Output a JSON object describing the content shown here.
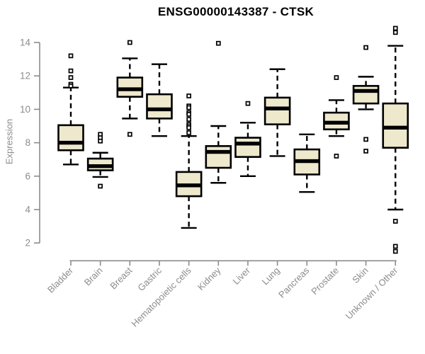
{
  "title": "ENSG00000143387 - CTSK",
  "colors": {
    "background": "#ffffff",
    "box_fill": "#eee8cd",
    "box_stroke": "#000000",
    "median": "#000000",
    "whisker": "#000000",
    "outlier_stroke": "#000000",
    "outlier_fill": "#ffffff",
    "axis": "#8c8c8c",
    "tick_label": "#8c8c8c",
    "title_color": "#000000"
  },
  "chart_data": {
    "type": "boxplot",
    "title": "ENSG00000143387 - CTSK",
    "xlabel": "",
    "ylabel": "Expression",
    "ylim": [
      1.4,
      15.0
    ],
    "yticks": [
      2,
      4,
      6,
      8,
      10,
      12,
      14
    ],
    "grid": false,
    "legend": false,
    "whisker_style": "dashed",
    "outlier_marker": "open-square",
    "categories": [
      "Bladder",
      "Brain",
      "Breast",
      "Gastric",
      "Hematopoietic cells",
      "Kidney",
      "Liver",
      "Lung",
      "Pancreas",
      "Prostate",
      "Skin",
      "Unknown / Other"
    ],
    "series": [
      {
        "name": "Bladder",
        "median": 8.0,
        "q1": 7.55,
        "q3": 9.05,
        "whisker_low": 6.7,
        "whisker_high": 11.3,
        "outliers": [
          13.2,
          12.3,
          11.9,
          11.5,
          11.4
        ]
      },
      {
        "name": "Brain",
        "median": 6.6,
        "q1": 6.35,
        "q3": 7.05,
        "whisker_low": 5.95,
        "whisker_high": 7.4,
        "outliers": [
          8.5,
          8.3,
          8.1,
          5.4
        ]
      },
      {
        "name": "Breast",
        "median": 11.2,
        "q1": 10.75,
        "q3": 11.9,
        "whisker_low": 9.45,
        "whisker_high": 13.05,
        "outliers": [
          14.0,
          8.5
        ]
      },
      {
        "name": "Gastric",
        "median": 10.0,
        "q1": 9.45,
        "q3": 10.9,
        "whisker_low": 8.4,
        "whisker_high": 12.7,
        "outliers": []
      },
      {
        "name": "Hematopoietic cells",
        "median": 5.45,
        "q1": 4.8,
        "q3": 6.25,
        "whisker_low": 2.9,
        "whisker_high": 8.4,
        "outliers": [
          10.8,
          10.2,
          10.1,
          9.8,
          9.7,
          9.4,
          9.1,
          9.0,
          8.9,
          8.6
        ]
      },
      {
        "name": "Kidney",
        "median": 7.45,
        "q1": 6.5,
        "q3": 7.8,
        "whisker_low": 5.6,
        "whisker_high": 9.0,
        "outliers": [
          13.95
        ]
      },
      {
        "name": "Liver",
        "median": 7.95,
        "q1": 7.15,
        "q3": 8.3,
        "whisker_low": 6.0,
        "whisker_high": 9.2,
        "outliers": [
          10.35
        ]
      },
      {
        "name": "Lung",
        "median": 10.05,
        "q1": 9.1,
        "q3": 10.7,
        "whisker_low": 7.2,
        "whisker_high": 12.4,
        "outliers": []
      },
      {
        "name": "Pancreas",
        "median": 6.9,
        "q1": 6.1,
        "q3": 7.6,
        "whisker_low": 5.05,
        "whisker_high": 8.5,
        "outliers": []
      },
      {
        "name": "Prostate",
        "median": 9.2,
        "q1": 8.8,
        "q3": 9.8,
        "whisker_low": 8.4,
        "whisker_high": 10.55,
        "outliers": [
          11.9,
          7.2
        ]
      },
      {
        "name": "Skin",
        "median": 11.1,
        "q1": 10.35,
        "q3": 11.4,
        "whisker_low": 10.0,
        "whisker_high": 11.95,
        "outliers": [
          13.7,
          8.2,
          7.5
        ]
      },
      {
        "name": "Unknown / Other",
        "median": 8.9,
        "q1": 7.7,
        "q3": 10.35,
        "whisker_low": 4.0,
        "whisker_high": 13.8,
        "outliers": [
          14.85,
          14.6,
          3.3,
          1.8,
          1.5
        ]
      }
    ]
  }
}
